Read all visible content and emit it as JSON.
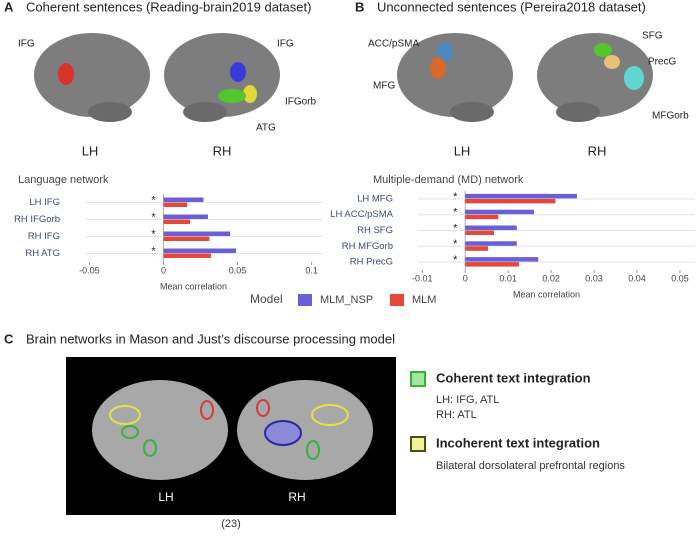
{
  "panels": [
    {
      "letter": "A",
      "title": "Coherent sentences (Reading-brain2019 dataset)",
      "regions": [
        "IFG",
        "IFG",
        "IFGorb",
        "ATG"
      ],
      "hemispheres": [
        "LH",
        "RH"
      ]
    },
    {
      "letter": "B",
      "title": "Unconnected sentences (Pereira2018 dataset)",
      "regions": [
        "ACC/pSMA",
        "MFG",
        "SFG",
        "PrecG",
        "MFGorb"
      ],
      "hemispheres": [
        "LH",
        "RH"
      ]
    },
    {
      "letter": "C",
      "title": "Brain networks in Mason and Just’s discourse processing model",
      "hemispheres": [
        "LH",
        "RH"
      ],
      "items": [
        {
          "title": "Coherent text integration",
          "lines": [
            "LH: IFG, ATL",
            "RH: ATL"
          ]
        },
        {
          "title": "Incoherent text integration",
          "lines": [
            "Bilateral dorsolateral prefrontal regions"
          ]
        }
      ],
      "citation": "(23)"
    }
  ],
  "legend": {
    "title": "Model"
  },
  "chart_data": [
    {
      "type": "hbar",
      "title": "Language network",
      "x_label": "Mean correlation",
      "categories": [
        "LH IFG",
        "RH IFGorb",
        "RH IFG",
        "RH ATG"
      ],
      "significance": [
        "*",
        "*",
        "*",
        "*"
      ],
      "series": [
        {
          "name": "MLM_NSP",
          "color": "#6a5fd6",
          "values": [
            0.027,
            0.03,
            0.045,
            0.049
          ]
        },
        {
          "name": "MLM",
          "color": "#e2483b",
          "values": [
            0.016,
            0.018,
            0.031,
            0.032
          ]
        }
      ],
      "xlim": [
        -0.053,
        0.107
      ],
      "xticks": [
        -0.05,
        0,
        0.05,
        0.1
      ]
    },
    {
      "type": "hbar",
      "title": "Multiple-demand (MD) network",
      "x_label": "Mean correlation",
      "categories": [
        "LH MFG",
        "LH ACC/pSMA",
        "RH SFG",
        "RH MFGorb",
        "RH PrecG"
      ],
      "significance": [
        "*",
        "*",
        "*",
        "*",
        "*"
      ],
      "series": [
        {
          "name": "MLM_NSP",
          "color": "#6a5fd6",
          "values": [
            0.026,
            0.016,
            0.012,
            0.012,
            0.017
          ]
        },
        {
          "name": "MLM",
          "color": "#e2483b",
          "values": [
            0.021,
            0.0077,
            0.0067,
            0.0053,
            0.0125
          ]
        }
      ],
      "xlim": [
        -0.011,
        0.0535
      ],
      "xticks": [
        -0.01,
        0,
        0.01,
        0.02,
        0.03,
        0.04,
        0.05
      ]
    }
  ]
}
